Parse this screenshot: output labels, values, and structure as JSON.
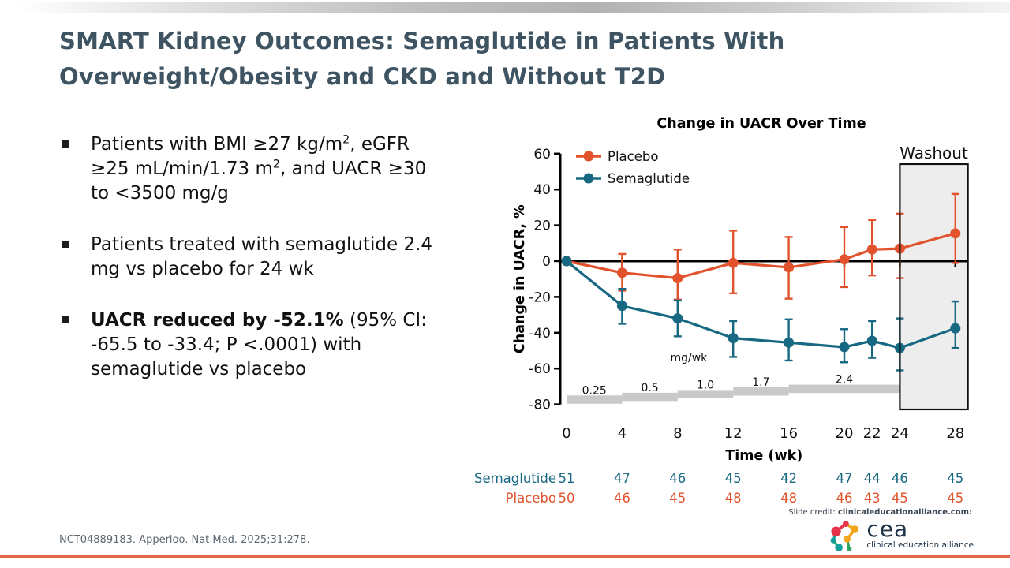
{
  "title": "SMART Kidney Outcomes: Semaglutide in Patients With Overweight/Obesity and CKD and Without T2D",
  "bullets": {
    "b1": {
      "p1": "Patients with BMI ≥27 kg/m",
      "sup1": "2",
      "p2": ", eGFR ≥25 mL/min/1.73 m",
      "sup2": "2",
      "p3": ", and UACR ≥30 to <3500 mg/g"
    },
    "b2": {
      "text": "Patients treated with semaglutide 2.4 mg vs placebo for 24 wk"
    },
    "b3": {
      "bold": "UACR reduced by -52.1%",
      "rest": " (95% CI: -65.5 to -33.4; P <.0001) with semaglutide vs placebo"
    }
  },
  "chart_data": {
    "type": "line",
    "title": "Change in UACR Over Time",
    "xlabel": "Time (wk)",
    "ylabel": "Change in UACR, %",
    "ylim": [
      -80,
      60
    ],
    "y_ticks": [
      60,
      40,
      20,
      0,
      -20,
      -40,
      -60,
      -80
    ],
    "weeks": [
      0,
      4,
      8,
      12,
      16,
      20,
      22,
      24,
      28
    ],
    "legend_position": "top-left",
    "grid": false,
    "series": [
      {
        "name": "Placebo",
        "color": "#E2532D",
        "values": [
          0,
          -6.5,
          -9.5,
          -1,
          -3.5,
          1,
          6.5,
          7,
          15.5
        ],
        "ci_low": [
          0,
          -16.5,
          -21.5,
          -18,
          -21,
          -14.5,
          -8,
          -9.5,
          -1
        ],
        "ci_high": [
          0,
          4,
          6.5,
          17,
          13.5,
          19,
          23,
          26.5,
          37.5
        ]
      },
      {
        "name": "Semaglutide",
        "color": "#176882",
        "values": [
          0,
          -25,
          -32,
          -43,
          -45.5,
          -48,
          -44.5,
          -48.5,
          -37.5
        ],
        "ci_low": [
          0,
          -35,
          -42,
          -53.5,
          -55.5,
          -56.5,
          -54,
          -61,
          -48.5
        ],
        "ci_high": [
          0,
          -15.5,
          -22,
          -33.5,
          -32.5,
          -38,
          -33.5,
          -32,
          -22.5
        ]
      }
    ],
    "washout": {
      "label": "Washout",
      "from_week": 24
    },
    "dose_band": {
      "unit": "mg/wk",
      "steps": [
        {
          "label": "0.25",
          "from": 0,
          "to": 4,
          "top": -75
        },
        {
          "label": "0.5",
          "from": 4,
          "to": 8,
          "top": -73.5
        },
        {
          "label": "1.0",
          "from": 8,
          "to": 12,
          "top": -72
        },
        {
          "label": "1.7",
          "from": 12,
          "to": 16,
          "top": -70.5
        },
        {
          "label": "2.4",
          "from": 16,
          "to": 24,
          "top": -69
        }
      ]
    },
    "n_table": {
      "rows": [
        {
          "label": "Semaglutide",
          "color": "#176882",
          "values": [
            51,
            47,
            46,
            45,
            42,
            47,
            44,
            46,
            45
          ]
        },
        {
          "label": "Placebo",
          "color": "#E2532D",
          "values": [
            50,
            46,
            45,
            48,
            48,
            46,
            43,
            45,
            45
          ]
        }
      ]
    }
  },
  "footer": {
    "reference": "NCT04889183. Apperloo. Nat Med. 2025;31:278.",
    "credit_prefix": "Slide credit:",
    "credit_site": "clinicaleducationalliance.com:",
    "logo_text": "cea",
    "logo_tagline": "clinical education alliance"
  }
}
